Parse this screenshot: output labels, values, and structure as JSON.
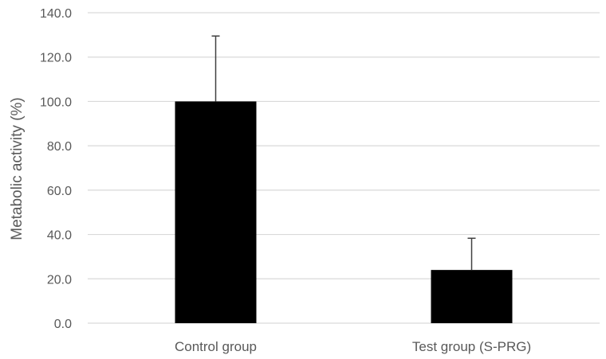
{
  "chart_data": {
    "type": "bar",
    "title": "",
    "xlabel": "",
    "ylabel": "Metabolic activity (%)",
    "categories": [
      "Control group",
      "Test group (S-PRG)"
    ],
    "values": [
      100.0,
      24.0
    ],
    "error_plus": [
      29.5,
      14.3
    ],
    "ylim": [
      0,
      140
    ],
    "yticks": [
      "0.0",
      "20.0",
      "40.0",
      "60.0",
      "80.0",
      "100.0",
      "120.0",
      "140.0"
    ],
    "grid": true,
    "legend": "none",
    "colors": {
      "bar": "#000000",
      "grid": "#d9d9d9",
      "text": "#595959",
      "error_bar": "#404040"
    }
  }
}
